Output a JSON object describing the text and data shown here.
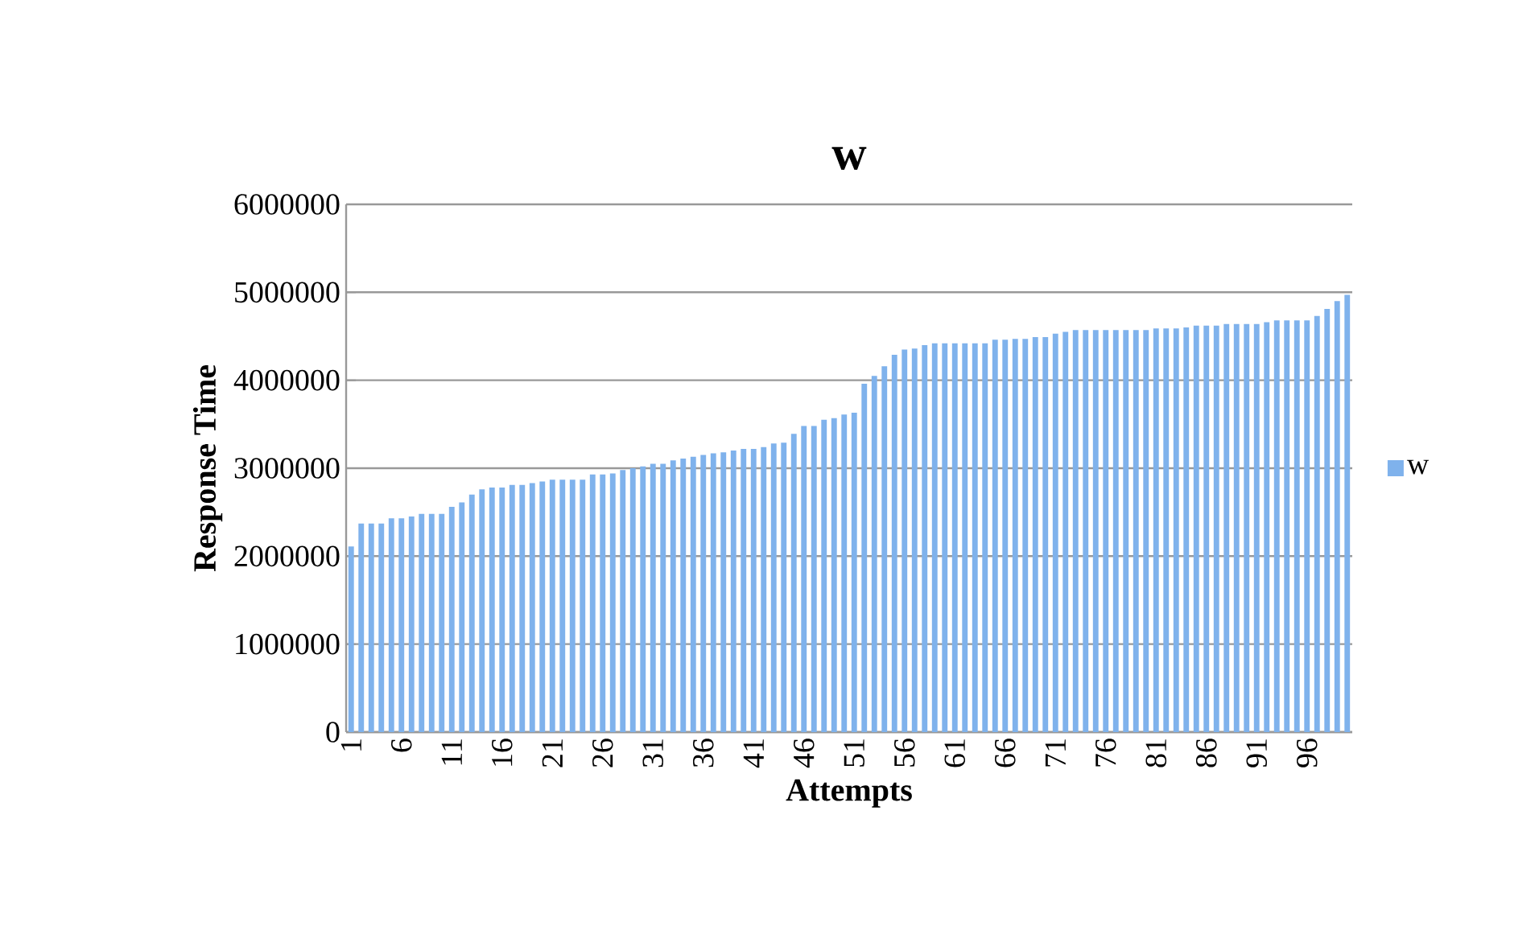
{
  "chart_data": {
    "type": "bar",
    "title": "w",
    "xlabel": "Attempts",
    "ylabel": "Response Time",
    "categories": [
      "1",
      null,
      null,
      null,
      null,
      "6",
      null,
      null,
      null,
      null,
      "11",
      null,
      null,
      null,
      null,
      "16",
      null,
      null,
      null,
      null,
      "21",
      null,
      null,
      null,
      null,
      "26",
      null,
      null,
      null,
      null,
      "31",
      null,
      null,
      null,
      null,
      "36",
      null,
      null,
      null,
      null,
      "41",
      null,
      null,
      null,
      null,
      "46",
      null,
      null,
      null,
      null,
      "51",
      null,
      null,
      null,
      null,
      "56",
      null,
      null,
      null,
      null,
      "61",
      null,
      null,
      null,
      null,
      "66",
      null,
      null,
      null,
      null,
      "71",
      null,
      null,
      null,
      null,
      "76",
      null,
      null,
      null,
      null,
      "81",
      null,
      null,
      null,
      null,
      "86",
      null,
      null,
      null,
      null,
      "91",
      null,
      null,
      null,
      null,
      "96",
      null,
      null,
      null,
      null
    ],
    "series": [
      {
        "name": "w",
        "color": "#7fb2ec",
        "values": [
          2110000,
          2370000,
          2370000,
          2370000,
          2430000,
          2430000,
          2450000,
          2480000,
          2480000,
          2480000,
          2560000,
          2610000,
          2700000,
          2760000,
          2780000,
          2780000,
          2810000,
          2810000,
          2830000,
          2850000,
          2870000,
          2870000,
          2870000,
          2870000,
          2930000,
          2930000,
          2940000,
          2980000,
          3000000,
          3020000,
          3050000,
          3050000,
          3090000,
          3110000,
          3130000,
          3150000,
          3170000,
          3180000,
          3200000,
          3220000,
          3220000,
          3240000,
          3280000,
          3290000,
          3390000,
          3480000,
          3480000,
          3550000,
          3570000,
          3610000,
          3630000,
          3960000,
          4050000,
          4160000,
          4290000,
          4350000,
          4360000,
          4400000,
          4420000,
          4420000,
          4420000,
          4420000,
          4420000,
          4420000,
          4460000,
          4460000,
          4470000,
          4470000,
          4490000,
          4490000,
          4530000,
          4550000,
          4570000,
          4570000,
          4570000,
          4570000,
          4570000,
          4570000,
          4570000,
          4570000,
          4590000,
          4590000,
          4590000,
          4600000,
          4620000,
          4620000,
          4620000,
          4640000,
          4640000,
          4640000,
          4640000,
          4660000,
          4680000,
          4680000,
          4680000,
          4680000,
          4730000,
          4810000,
          4900000,
          4970000
        ]
      }
    ],
    "ylim": [
      0,
      6000000
    ],
    "yticks": [
      0,
      1000000,
      2000000,
      3000000,
      4000000,
      5000000,
      6000000
    ],
    "grid": "y",
    "legend": "right"
  }
}
